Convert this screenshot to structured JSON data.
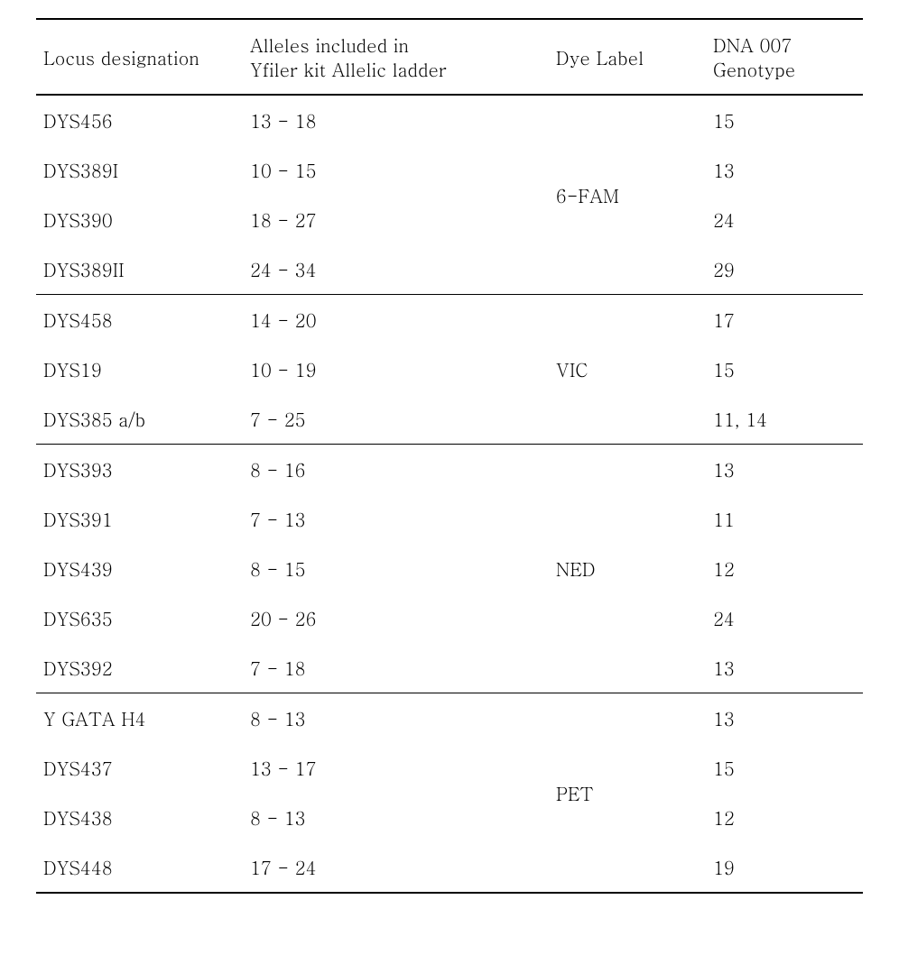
{
  "table": {
    "columns": {
      "locus": "Locus designation",
      "alleles_line1": "Alleles included in",
      "alleles_line2": "Yfiler kit Allelic ladder",
      "dye": "Dye Label",
      "genotype_line1": "DNA 007",
      "genotype_line2": "Genotype"
    },
    "column_widths": {
      "locus": "25%",
      "alleles": "37%",
      "dye": "19%",
      "genotype": "19%"
    },
    "font_size": 20,
    "text_color": "#000000",
    "border_color": "#000000",
    "background_color": "#ffffff",
    "groups": [
      {
        "dye_label": "6-FAM",
        "rows": [
          {
            "locus": "DYS456",
            "alleles": "13 - 18",
            "genotype": "15"
          },
          {
            "locus": "DYS389I",
            "alleles": "10 - 15",
            "genotype": "13"
          },
          {
            "locus": "DYS390",
            "alleles": "18 - 27",
            "genotype": "24"
          },
          {
            "locus": "DYS389II",
            "alleles": "24 - 34",
            "genotype": "29"
          }
        ]
      },
      {
        "dye_label": "VIC",
        "rows": [
          {
            "locus": "DYS458",
            "alleles": "14 - 20",
            "genotype": "17"
          },
          {
            "locus": "DYS19",
            "alleles": "10 - 19",
            "genotype": "15"
          },
          {
            "locus": "DYS385 a/b",
            "alleles": "7 - 25",
            "genotype": "11, 14"
          }
        ]
      },
      {
        "dye_label": "NED",
        "rows": [
          {
            "locus": "DYS393",
            "alleles": "8 - 16",
            "genotype": "13"
          },
          {
            "locus": "DYS391",
            "alleles": "7 - 13",
            "genotype": "11"
          },
          {
            "locus": "DYS439",
            "alleles": "8 - 15",
            "genotype": "12"
          },
          {
            "locus": "DYS635",
            "alleles": "20 - 26",
            "genotype": "24"
          },
          {
            "locus": "DYS392",
            "alleles": "7 - 18",
            "genotype": "13"
          }
        ]
      },
      {
        "dye_label": "PET",
        "rows": [
          {
            "locus": "Y GATA H4",
            "alleles": "8 - 13",
            "genotype": "13"
          },
          {
            "locus": "DYS437",
            "alleles": "13 - 17",
            "genotype": "15"
          },
          {
            "locus": "DYS438",
            "alleles": "8 - 13",
            "genotype": "12"
          },
          {
            "locus": "DYS448",
            "alleles": "17 - 24",
            "genotype": "19"
          }
        ]
      }
    ]
  }
}
